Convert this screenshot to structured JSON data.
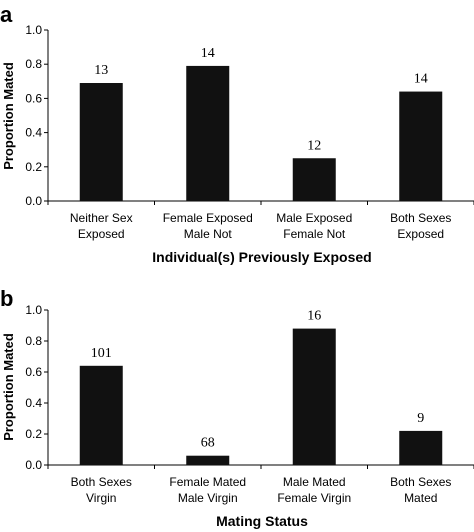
{
  "chart_data": [
    {
      "type": "bar",
      "panel": "a",
      "xlabel": "Individual(s) Previously Exposed",
      "ylabel": "Proportion Mated",
      "ylim": [
        0,
        1.0
      ],
      "yticks": [
        "0.0",
        "0.2",
        "0.4",
        "0.6",
        "0.8",
        "1.0"
      ],
      "categories": [
        [
          "Neither Sex",
          "Exposed"
        ],
        [
          "Female Exposed",
          "Male Not"
        ],
        [
          "Male Exposed",
          "Female Not"
        ],
        [
          "Both Sexes",
          "Exposed"
        ]
      ],
      "values": [
        0.69,
        0.79,
        0.25,
        0.64
      ],
      "data_labels": [
        "13",
        "14",
        "12",
        "14"
      ],
      "bar_color": "#111111"
    },
    {
      "type": "bar",
      "panel": "b",
      "xlabel": "Mating Status",
      "ylabel": "Proportion Mated",
      "ylim": [
        0,
        1.0
      ],
      "yticks": [
        "0.0",
        "0.2",
        "0.4",
        "0.6",
        "0.8",
        "1.0"
      ],
      "categories": [
        [
          "Both Sexes",
          "Virgin"
        ],
        [
          "Female Mated",
          "Male Virgin"
        ],
        [
          "Male Mated",
          "Female Virgin"
        ],
        [
          "Both Sexes",
          "Mated"
        ]
      ],
      "values": [
        0.64,
        0.06,
        0.88,
        0.22
      ],
      "data_labels": [
        "101",
        "68",
        "16",
        "9"
      ],
      "bar_color": "#111111"
    }
  ]
}
